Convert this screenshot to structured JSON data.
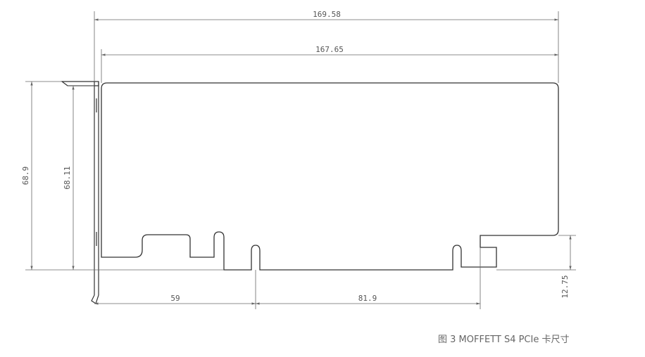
{
  "dimensions": {
    "total_length": "169.58",
    "card_length": "167.65",
    "bracket_height": "68.9",
    "card_height": "68.11",
    "bracket_to_key": "59",
    "key_to_end": "81.9",
    "end_tab_height": "12.75"
  },
  "caption": "图 3 MOFFETT S4 PCIe 卡尺寸",
  "colors": {
    "line": "#333333",
    "dim": "#666666",
    "caption": "#666666"
  }
}
